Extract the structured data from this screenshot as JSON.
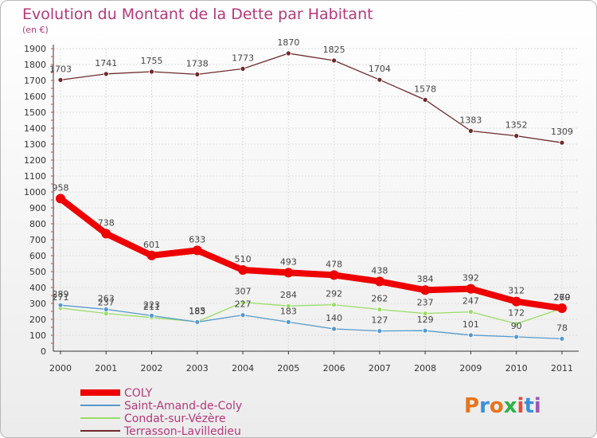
{
  "chart_data": {
    "type": "line",
    "title": "Evolution du Montant de la Dette par Habitant",
    "subtitle": "(en €)",
    "categories": [
      "2000",
      "2001",
      "2002",
      "2003",
      "2004",
      "2005",
      "2006",
      "2007",
      "2008",
      "2009",
      "2010",
      "2011"
    ],
    "ylim": [
      0,
      1900
    ],
    "yticks": [
      0,
      100,
      200,
      300,
      400,
      500,
      600,
      700,
      800,
      900,
      1000,
      1100,
      1200,
      1300,
      1400,
      1500,
      1600,
      1700,
      1800,
      1900
    ],
    "grid": true,
    "legend_position": "bottom-left",
    "series": [
      {
        "name": "Terrasson-Lavilledieu",
        "color": "#6e2a2a",
        "values": [
          1703,
          1741,
          1755,
          1738,
          1773,
          1870,
          1825,
          1704,
          1578,
          1383,
          1352,
          1309
        ]
      },
      {
        "name": "Condat-sur-Vézère",
        "color": "#99dd66",
        "values": [
          271,
          237,
          211,
          185,
          307,
          284,
          292,
          262,
          237,
          247,
          172,
          269
        ]
      },
      {
        "name": "Saint-Amand-de-Coly",
        "color": "#5599cc",
        "values": [
          289,
          263,
          223,
          183,
          227,
          183,
          140,
          127,
          129,
          101,
          90,
          78
        ]
      },
      {
        "name": "COLY",
        "color": "#ee0000",
        "values": [
          958,
          738,
          601,
          633,
          510,
          493,
          478,
          438,
          384,
          392,
          312,
          270
        ]
      }
    ]
  },
  "legend": [
    {
      "name": "COLY",
      "color": "#ee0000"
    },
    {
      "name": "Saint-Amand-de-Coly",
      "color": "#5599cc"
    },
    {
      "name": "Condat-sur-Vézère",
      "color": "#99dd66"
    },
    {
      "name": "Terrasson-Lavilledieu",
      "color": "#6e2a2a"
    }
  ],
  "logo": {
    "text": "Proxiti"
  }
}
